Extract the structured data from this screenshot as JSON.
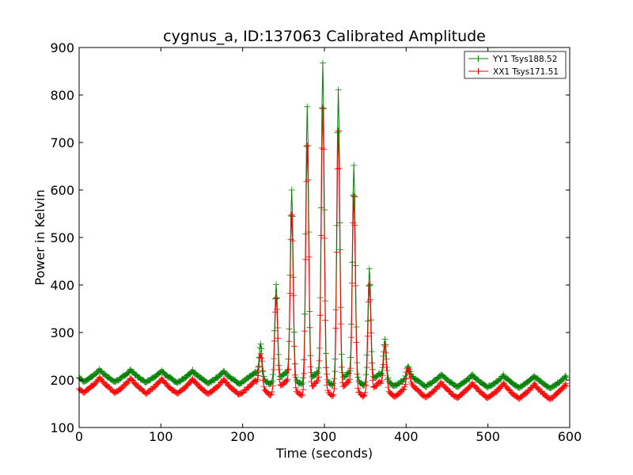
{
  "chart_data": {
    "type": "line",
    "title": "cygnus_a, ID:137063 Calibrated Amplitude",
    "xlabel": "Time (seconds)",
    "ylabel": "Power in Kelvin",
    "xlim": [
      0,
      600
    ],
    "ylim": [
      100,
      900
    ],
    "xticks": [
      0,
      100,
      200,
      300,
      400,
      500,
      600
    ],
    "yticks": [
      100,
      200,
      300,
      400,
      500,
      600,
      700,
      800,
      900
    ],
    "grid": false,
    "legend_position": "top-right",
    "marker": "+",
    "sample_interval_s": 1,
    "series": [
      {
        "name": "YY1 Tsys188.52",
        "color": "#008000",
        "baseline": {
          "mean_start": 210,
          "mean_end": 195,
          "ripple_amplitude": 13,
          "ripple_period_s": 38,
          "ripple_phase_s": 25
        },
        "peaks": [
          {
            "x": 222,
            "y": 275
          },
          {
            "x": 241,
            "y": 405
          },
          {
            "x": 260,
            "y": 600
          },
          {
            "x": 279,
            "y": 780
          },
          {
            "x": 298,
            "y": 865
          },
          {
            "x": 317,
            "y": 815
          },
          {
            "x": 336,
            "y": 650
          },
          {
            "x": 355,
            "y": 440
          },
          {
            "x": 374,
            "y": 285
          },
          {
            "x": 402,
            "y": 222
          }
        ]
      },
      {
        "name": "XX1 Tsys171.51",
        "color": "#ff0000",
        "baseline": {
          "mean_start": 190,
          "mean_end": 175,
          "ripple_amplitude": 16,
          "ripple_period_s": 38,
          "ripple_phase_s": 25
        },
        "peaks": [
          {
            "x": 222,
            "y": 255
          },
          {
            "x": 241,
            "y": 380
          },
          {
            "x": 260,
            "y": 545
          },
          {
            "x": 279,
            "y": 700
          },
          {
            "x": 298,
            "y": 770
          },
          {
            "x": 317,
            "y": 730
          },
          {
            "x": 336,
            "y": 585
          },
          {
            "x": 355,
            "y": 405
          },
          {
            "x": 374,
            "y": 270
          },
          {
            "x": 402,
            "y": 215
          }
        ]
      }
    ]
  }
}
